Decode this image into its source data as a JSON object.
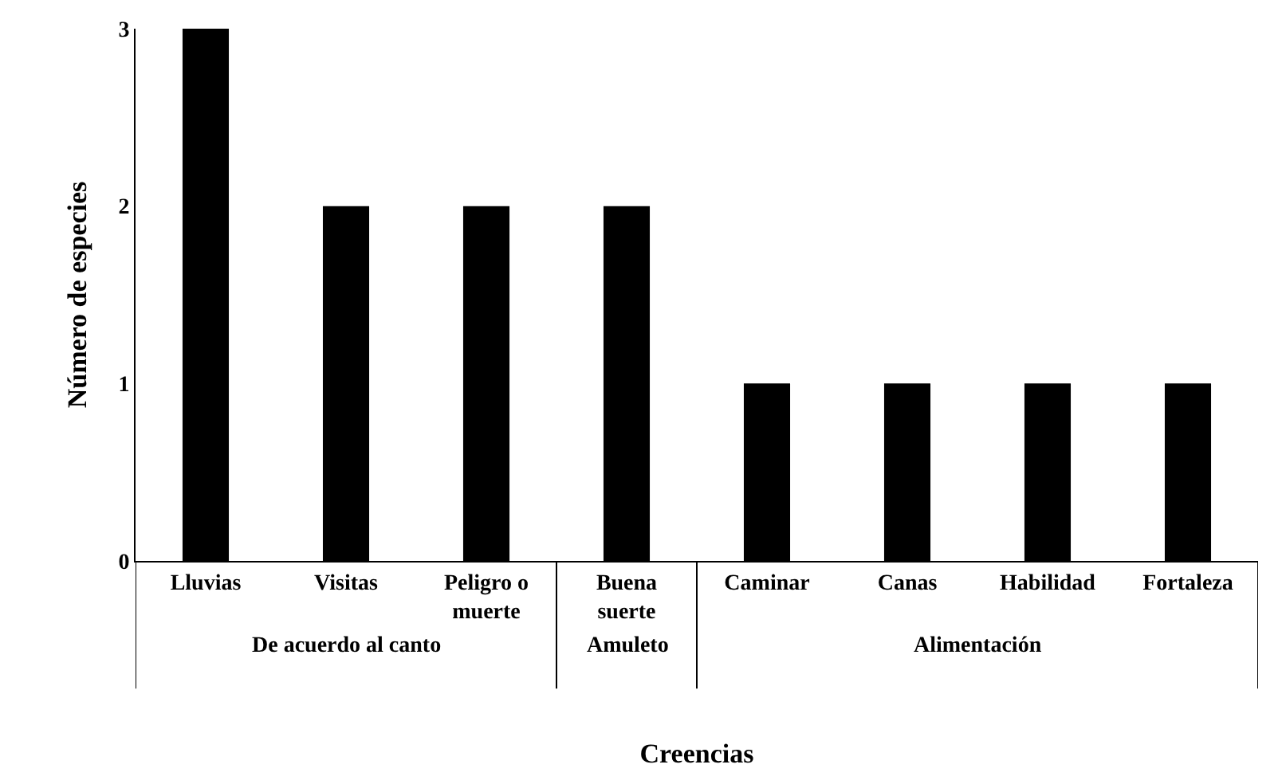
{
  "chart_data": {
    "type": "bar",
    "xlabel": "Creencias",
    "ylabel": "Número de especies",
    "categories": [
      "Lluvias",
      "Visitas",
      "Peligro o muerte",
      "Buena suerte",
      "Caminar",
      "Canas",
      "Habilidad",
      "Fortaleza"
    ],
    "values": [
      3,
      2,
      2,
      2,
      1,
      1,
      1,
      1
    ],
    "color": "#000000",
    "ylim": [
      0,
      3
    ],
    "yticks": [
      0,
      1,
      2,
      3
    ],
    "annotations": [
      "De acuerdo al canto",
      "Amuleto",
      "Alimentación"
    ]
  }
}
